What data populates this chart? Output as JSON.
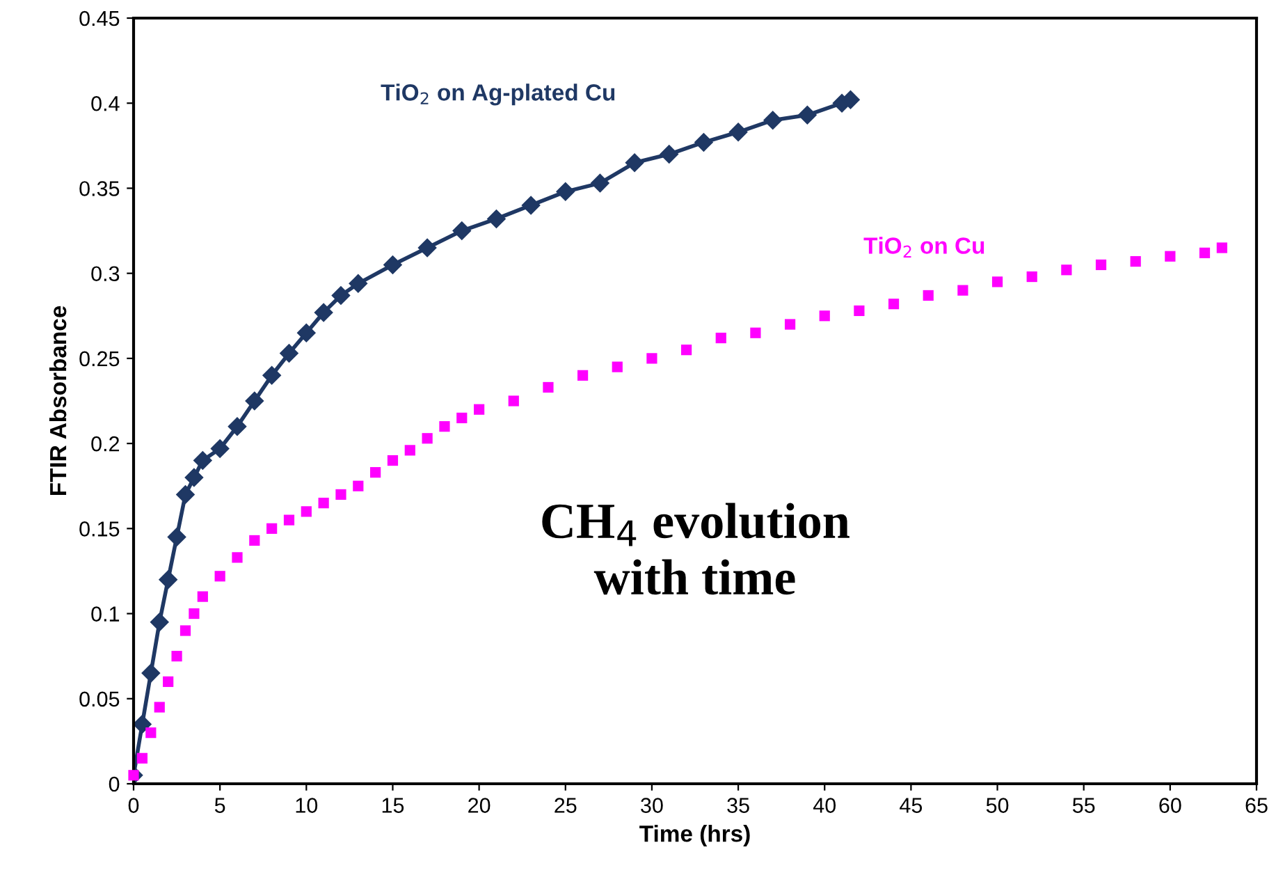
{
  "chart_data": {
    "type": "line",
    "xlabel": "Time (hrs)",
    "ylabel": "FTIR Absorbance",
    "annotations": [
      "CH$_{4}$ evolution\nwith time"
    ],
    "xlim": [
      0,
      65
    ],
    "xticks": [
      0,
      5,
      10,
      15,
      20,
      25,
      30,
      35,
      40,
      45,
      50,
      55,
      60,
      65
    ],
    "ylim": [
      0,
      0.45
    ],
    "yticks": [
      0,
      0.05,
      0.1,
      0.15,
      0.2,
      0.25,
      0.3,
      0.35,
      0.4,
      0.45
    ],
    "grid": false,
    "legend": false,
    "series": [
      {
        "name": "TiO$_{2}$ on Ag-plated Cu",
        "color": "#1f3864",
        "marker": "diamond",
        "line_style": "solid",
        "x": [
          0,
          0.5,
          1,
          1.5,
          2,
          2.5,
          3,
          3.5,
          4,
          5,
          6,
          7,
          8,
          9,
          10,
          11,
          12,
          13,
          15,
          17,
          19,
          21,
          23,
          25,
          27,
          29,
          31,
          33,
          35,
          37,
          39,
          41,
          41.5
        ],
        "values": [
          0.005,
          0.035,
          0.065,
          0.095,
          0.12,
          0.145,
          0.17,
          0.18,
          0.19,
          0.197,
          0.21,
          0.225,
          0.24,
          0.253,
          0.265,
          0.277,
          0.287,
          0.294,
          0.305,
          0.315,
          0.325,
          0.332,
          0.34,
          0.348,
          0.353,
          0.365,
          0.37,
          0.377,
          0.383,
          0.39,
          0.393,
          0.4,
          0.402
        ]
      },
      {
        "name": "TiO$_{2}$ on Cu",
        "type": "scatter",
        "color": "#ff00ff",
        "marker": "square",
        "x": [
          0,
          0.5,
          1,
          1.5,
          2,
          2.5,
          3,
          3.5,
          4,
          5,
          6,
          7,
          8,
          9,
          10,
          11,
          12,
          13,
          14,
          15,
          16,
          17,
          18,
          19,
          20,
          22,
          24,
          26,
          28,
          30,
          32,
          34,
          36,
          38,
          40,
          42,
          44,
          46,
          48,
          50,
          52,
          54,
          56,
          58,
          60,
          62,
          63
        ],
        "values": [
          0.005,
          0.015,
          0.03,
          0.045,
          0.06,
          0.075,
          0.09,
          0.1,
          0.11,
          0.122,
          0.133,
          0.143,
          0.15,
          0.155,
          0.16,
          0.165,
          0.17,
          0.175,
          0.183,
          0.19,
          0.196,
          0.203,
          0.21,
          0.215,
          0.22,
          0.225,
          0.233,
          0.24,
          0.245,
          0.25,
          0.255,
          0.262,
          0.265,
          0.27,
          0.275,
          0.278,
          0.282,
          0.287,
          0.29,
          0.295,
          0.298,
          0.302,
          0.305,
          0.307,
          0.31,
          0.312,
          0.315
        ]
      }
    ]
  }
}
